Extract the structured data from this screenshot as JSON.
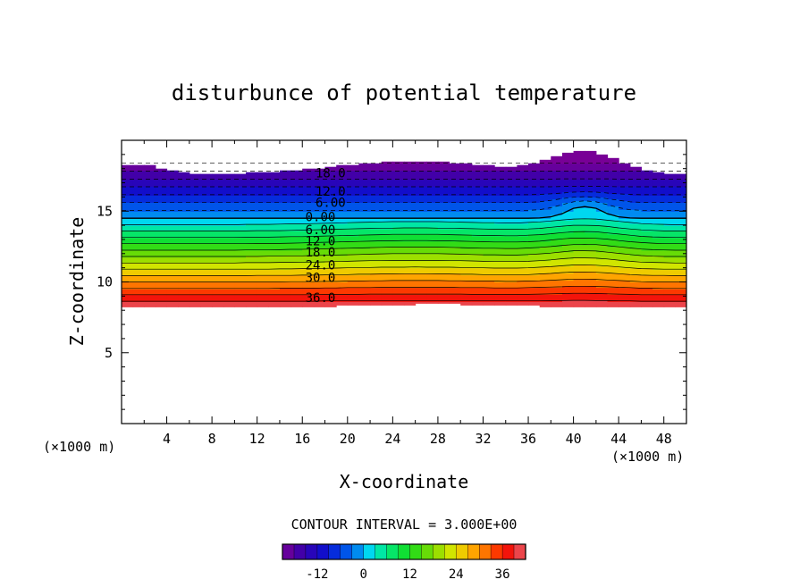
{
  "chart_data": {
    "type": "heatmap",
    "title": "disturbunce of potential temperature",
    "xlabel": "X-coordinate",
    "ylabel": "Z-coordinate",
    "x_unit": "(×1000 m)",
    "y_unit": "(×1000 m)",
    "xlim": [
      0,
      50
    ],
    "ylim": [
      0,
      20
    ],
    "x_ticks": [
      "4",
      "8",
      "12",
      "16",
      "20",
      "24",
      "28",
      "32",
      "36",
      "40",
      "44",
      "48"
    ],
    "y_ticks": [
      "5",
      "10",
      "15"
    ],
    "contour_interval_text": "CONTOUR INTERVAL = 3.000E+00",
    "contour_interval": 3,
    "z_range": [
      -21,
      42
    ],
    "contour_labels": [
      {
        "text": "18.0",
        "x": 18.5,
        "z": 17.7
      },
      {
        "text": "12.0",
        "x": 18.5,
        "z": 16.4
      },
      {
        "text": "6.00",
        "x": 18.5,
        "z": 15.6
      },
      {
        "text": "0.00",
        "x": 17.6,
        "z": 14.6
      },
      {
        "text": "6.00",
        "x": 17.6,
        "z": 13.7
      },
      {
        "text": "12.0",
        "x": 17.6,
        "z": 12.9
      },
      {
        "text": "18.0",
        "x": 17.6,
        "z": 12.1
      },
      {
        "text": "24.0",
        "x": 17.6,
        "z": 11.2
      },
      {
        "text": "30.0",
        "x": 17.6,
        "z": 10.3
      },
      {
        "text": "36.0",
        "x": 17.6,
        "z": 8.9
      }
    ],
    "colorbar_ticks": [
      "-12",
      "0",
      "12",
      "24",
      "36"
    ],
    "colorbar_tick_values": [
      -12,
      0,
      12,
      24,
      36
    ]
  }
}
